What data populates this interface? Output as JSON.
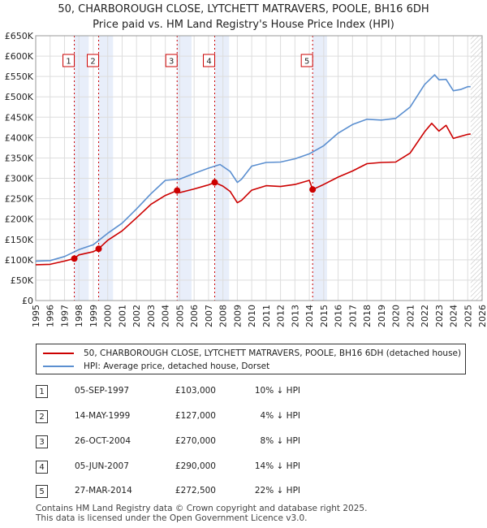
{
  "title_line1": "50, CHARBOROUGH CLOSE, LYTCHETT MATRAVERS, POOLE, BH16 6DH",
  "title_line2": "Price paid vs. HM Land Registry's House Price Index (HPI)",
  "chart_data": {
    "type": "line",
    "title": "50, CHARBOROUGH CLOSE, LYTCHETT MATRAVERS, POOLE, BH16 6DH — Price paid vs. HM Land Registry's House Price Index (HPI)",
    "xlabel": "",
    "ylabel": "",
    "xlim": [
      1995,
      2026
    ],
    "ylim": [
      0,
      650000
    ],
    "y_ticks": [
      0,
      50000,
      100000,
      150000,
      200000,
      250000,
      300000,
      350000,
      400000,
      450000,
      500000,
      550000,
      600000,
      650000
    ],
    "y_tick_labels": [
      "£0",
      "£50K",
      "£100K",
      "£150K",
      "£200K",
      "£250K",
      "£300K",
      "£350K",
      "£400K",
      "£450K",
      "£500K",
      "£550K",
      "£600K",
      "£650K"
    ],
    "x_ticks": [
      1995,
      1996,
      1997,
      1998,
      1999,
      2000,
      2001,
      2002,
      2003,
      2004,
      2005,
      2006,
      2007,
      2008,
      2009,
      2010,
      2011,
      2012,
      2013,
      2014,
      2015,
      2016,
      2017,
      2018,
      2019,
      2020,
      2021,
      2022,
      2023,
      2024,
      2025,
      2026
    ],
    "x_tick_labels": [
      "1995",
      "1996",
      "1997",
      "1998",
      "1999",
      "2000",
      "2001",
      "2002",
      "2003",
      "2004",
      "2005",
      "2006",
      "2007",
      "2008",
      "2009",
      "2010",
      "2011",
      "2012",
      "2013",
      "2014",
      "2015",
      "2016",
      "2017",
      "2018",
      "2019",
      "2020",
      "2021",
      "2022",
      "2023",
      "2024",
      "2025",
      "2026"
    ],
    "grid": true,
    "data_end": 2025.2,
    "series": [
      {
        "name": "50, CHARBOROUGH CLOSE, LYTCHETT MATRAVERS, POOLE, BH16 6DH (detached house)",
        "color": "#cc0000",
        "x": [
          1995.0,
          1996.0,
          1997.0,
          1997.68,
          1998.0,
          1999.0,
          1999.37,
          2000.0,
          2001.0,
          2002.0,
          2003.0,
          2004.0,
          2004.82,
          2005.0,
          2006.0,
          2007.0,
          2007.43,
          2008.0,
          2008.5,
          2009.0,
          2009.3,
          2010.0,
          2011.0,
          2012.0,
          2013.0,
          2014.0,
          2014.23,
          2015.0,
          2016.0,
          2017.0,
          2018.0,
          2019.0,
          2020.0,
          2021.0,
          2022.0,
          2022.5,
          2023.0,
          2023.5,
          2024.0,
          2024.5,
          2025.0,
          2025.2
        ],
        "values": [
          88000,
          89000,
          97000,
          103000,
          112000,
          120000,
          127000,
          148000,
          171000,
          203000,
          236000,
          258000,
          270000,
          265000,
          274000,
          284000,
          290000,
          281000,
          268000,
          240000,
          246000,
          271000,
          282000,
          280000,
          285000,
          295000,
          272500,
          285000,
          303000,
          318000,
          336000,
          339000,
          340000,
          362000,
          414000,
          435000,
          416000,
          430000,
          398000,
          403000,
          408000,
          409000
        ]
      },
      {
        "name": "HPI: Average price, detached house, Dorset",
        "color": "#5b8fd0",
        "x": [
          1995.0,
          1996.0,
          1997.0,
          1998.0,
          1999.0,
          2000.0,
          2001.0,
          2002.0,
          2003.0,
          2004.0,
          2005.0,
          2006.0,
          2007.0,
          2007.8,
          2008.5,
          2009.0,
          2009.3,
          2010.0,
          2011.0,
          2012.0,
          2013.0,
          2014.0,
          2015.0,
          2016.0,
          2017.0,
          2018.0,
          2019.0,
          2020.0,
          2021.0,
          2022.0,
          2022.7,
          2023.0,
          2023.5,
          2024.0,
          2024.5,
          2025.0,
          2025.2
        ],
        "values": [
          97000,
          98000,
          108000,
          125000,
          137000,
          165000,
          190000,
          225000,
          262000,
          295000,
          298000,
          312000,
          325000,
          334000,
          317000,
          290000,
          298000,
          330000,
          339000,
          340000,
          348000,
          360000,
          380000,
          411000,
          432000,
          445000,
          443000,
          447000,
          475000,
          530000,
          554000,
          542000,
          543000,
          515000,
          518000,
          525000,
          525000
        ]
      }
    ],
    "sales": [
      {
        "num": "1",
        "x": 1997.68,
        "value": 103000
      },
      {
        "num": "2",
        "x": 1999.37,
        "value": 127000
      },
      {
        "num": "3",
        "x": 2004.82,
        "value": 270000
      },
      {
        "num": "4",
        "x": 2007.43,
        "value": 290000
      },
      {
        "num": "5",
        "x": 2014.23,
        "value": 272500
      }
    ]
  },
  "legend": {
    "red_label": "50, CHARBOROUGH CLOSE, LYTCHETT MATRAVERS, POOLE, BH16 6DH (detached house)",
    "blue_label": "HPI: Average price, detached house, Dorset"
  },
  "sales_table": [
    {
      "num": "1",
      "date": "05-SEP-1997",
      "price": "£103,000",
      "hpi": "10% ↓ HPI"
    },
    {
      "num": "2",
      "date": "14-MAY-1999",
      "price": "£127,000",
      "hpi": "4% ↓ HPI"
    },
    {
      "num": "3",
      "date": "26-OCT-2004",
      "price": "£270,000",
      "hpi": "8% ↓ HPI"
    },
    {
      "num": "4",
      "date": "05-JUN-2007",
      "price": "£290,000",
      "hpi": "14% ↓ HPI"
    },
    {
      "num": "5",
      "date": "27-MAR-2014",
      "price": "£272,500",
      "hpi": "22% ↓ HPI"
    }
  ],
  "footer_line1": "Contains HM Land Registry data © Crown copyright and database right 2025.",
  "footer_line2": "This data is licensed under the Open Government Licence v3.0."
}
